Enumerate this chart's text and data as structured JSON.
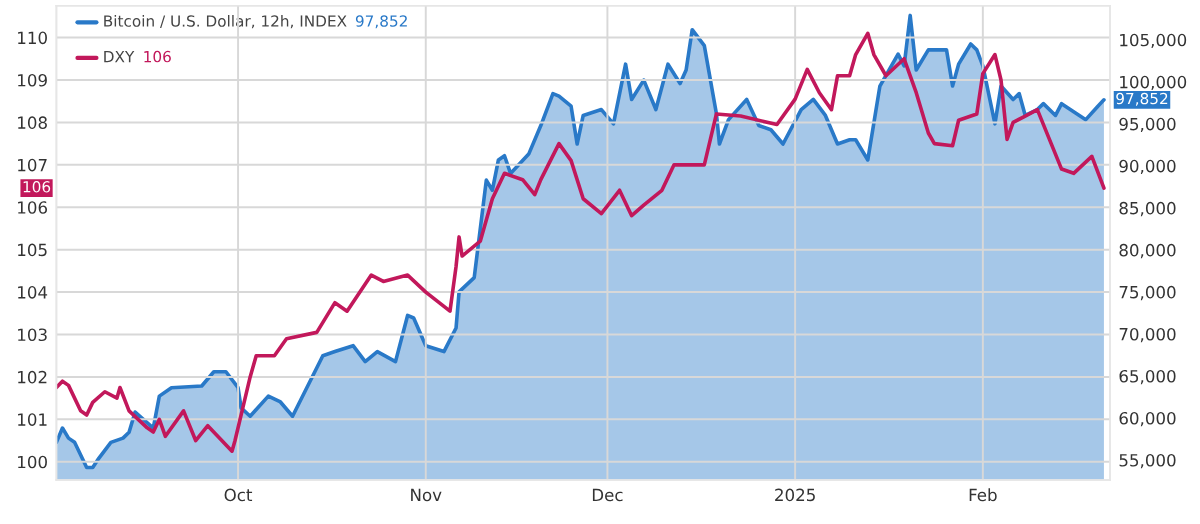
{
  "chart_data": {
    "type": "line",
    "xlim": [
      "2024-09-01",
      "2025-02-22"
    ],
    "xticks": [
      {
        "value": "2024-10-01",
        "label": "Oct"
      },
      {
        "value": "2024-11-01",
        "label": "Nov"
      },
      {
        "value": "2024-12-01",
        "label": "Dec"
      },
      {
        "value": "2025-01-01",
        "label": "2025"
      },
      {
        "value": "2025-02-01",
        "label": "Feb"
      }
    ],
    "ylim": [
      99.57,
      110.75
    ],
    "yticks": [
      100,
      101,
      102,
      103,
      104,
      105,
      106,
      107,
      108,
      109,
      110
    ],
    "y2lim": [
      52620,
      109050
    ],
    "y2ticks": [
      {
        "value": 55000,
        "label": "55,000"
      },
      {
        "value": 60000,
        "label": "60,000"
      },
      {
        "value": 65000,
        "label": "65,000"
      },
      {
        "value": 70000,
        "label": "70,000"
      },
      {
        "value": 75000,
        "label": "75,000"
      },
      {
        "value": 80000,
        "label": "80,000"
      },
      {
        "value": 85000,
        "label": "85,000"
      },
      {
        "value": 90000,
        "label": "90,000"
      },
      {
        "value": 95000,
        "label": "95,000"
      },
      {
        "value": 100000,
        "label": "100,000"
      },
      {
        "value": 105000,
        "label": "105,000"
      }
    ],
    "grid": true,
    "legend": "top left",
    "annotations": [
      "106",
      "97,852"
    ],
    "series": [
      {
        "name": "DXY",
        "axis": "y",
        "color": "#c2185b",
        "x": [
          "2024-09-01",
          "2024-09-02",
          "2024-09-03",
          "2024-09-05",
          "2024-09-06",
          "2024-09-07",
          "2024-09-09",
          "2024-09-11",
          "2024-09-11T12:00",
          "2024-09-13",
          "2024-09-16",
          "2024-09-17",
          "2024-09-18",
          "2024-09-19",
          "2024-09-22",
          "2024-09-24",
          "2024-09-26",
          "2024-09-30",
          "2024-09-30T12:00",
          "2024-10-02",
          "2024-10-03",
          "2024-10-04",
          "2024-10-07",
          "2024-10-09",
          "2024-10-14",
          "2024-10-17",
          "2024-10-19",
          "2024-10-23",
          "2024-10-25",
          "2024-10-29",
          "2024-11-01",
          "2024-11-05",
          "2024-11-06",
          "2024-11-06T12:00",
          "2024-11-07",
          "2024-11-10",
          "2024-11-12",
          "2024-11-14",
          "2024-11-17",
          "2024-11-19",
          "2024-11-20",
          "2024-11-23",
          "2024-11-25",
          "2024-11-27",
          "2024-11-30",
          "2024-12-03",
          "2024-12-05",
          "2024-12-07",
          "2024-12-10",
          "2024-12-12",
          "2024-12-17",
          "2024-12-19",
          "2024-12-23",
          "2024-12-29",
          "2025-01-01",
          "2025-01-03",
          "2025-01-05",
          "2025-01-07",
          "2025-01-08",
          "2025-01-10",
          "2025-01-11",
          "2025-01-13",
          "2025-01-14",
          "2025-01-16",
          "2025-01-19",
          "2025-01-21",
          "2025-01-23",
          "2025-01-24",
          "2025-01-27",
          "2025-01-28",
          "2025-01-31",
          "2025-02-01",
          "2025-02-03",
          "2025-02-04",
          "2025-02-05",
          "2025-02-06",
          "2025-02-08",
          "2025-02-10",
          "2025-02-12",
          "2025-02-14",
          "2025-02-16",
          "2025-02-19",
          "2025-02-21"
        ],
        "values": [
          101.75,
          101.9,
          101.8,
          101.2,
          101.1,
          101.4,
          101.65,
          101.5,
          101.75,
          101.2,
          100.8,
          100.7,
          101.0,
          100.6,
          101.2,
          100.5,
          100.85,
          100.25,
          100.5,
          101.4,
          102.0,
          102.5,
          102.5,
          102.9,
          103.05,
          103.75,
          103.55,
          104.4,
          104.25,
          104.4,
          104.0,
          103.55,
          104.6,
          105.3,
          104.85,
          105.2,
          106.2,
          106.8,
          106.65,
          106.3,
          106.65,
          107.5,
          107.1,
          106.2,
          105.85,
          106.4,
          105.8,
          106.05,
          106.4,
          107.0,
          107.0,
          108.2,
          108.15,
          107.95,
          108.55,
          109.25,
          108.7,
          108.3,
          109.1,
          109.1,
          109.6,
          110.1,
          109.6,
          109.1,
          109.5,
          108.7,
          107.75,
          107.5,
          107.45,
          108.05,
          108.2,
          109.15,
          109.6,
          109.0,
          107.6,
          108.0,
          108.15,
          108.3,
          107.6,
          106.9,
          106.8,
          107.2,
          106.45
        ]
      },
      {
        "name": "Bitcoin / U.S. Dollar, 12h, INDEX",
        "type": "area",
        "axis": "y2",
        "color": "#2979c8",
        "x": [
          "2024-09-01",
          "2024-09-02",
          "2024-09-03",
          "2024-09-04",
          "2024-09-06",
          "2024-09-07",
          "2024-09-08",
          "2024-09-10",
          "2024-09-12",
          "2024-09-13",
          "2024-09-14",
          "2024-09-17",
          "2024-09-18",
          "2024-09-20",
          "2024-09-25",
          "2024-09-27",
          "2024-09-29",
          "2024-10-01",
          "2024-10-01T12:00",
          "2024-10-03",
          "2024-10-06",
          "2024-10-08",
          "2024-10-10",
          "2024-10-15",
          "2024-10-17",
          "2024-10-20",
          "2024-10-22",
          "2024-10-24",
          "2024-10-27",
          "2024-10-29",
          "2024-10-30",
          "2024-11-01",
          "2024-11-04",
          "2024-11-06",
          "2024-11-06T12:00",
          "2024-11-09",
          "2024-11-11",
          "2024-11-12",
          "2024-11-13",
          "2024-11-14",
          "2024-11-15",
          "2024-11-18",
          "2024-11-20",
          "2024-11-22",
          "2024-11-23",
          "2024-11-25",
          "2024-11-26",
          "2024-11-27",
          "2024-11-30",
          "2024-12-02",
          "2024-12-04",
          "2024-12-05",
          "2024-12-07",
          "2024-12-09",
          "2024-12-11",
          "2024-12-13",
          "2024-12-14",
          "2024-12-15",
          "2024-12-17",
          "2024-12-19",
          "2024-12-19T12:00",
          "2024-12-21",
          "2024-12-24",
          "2024-12-26",
          "2024-12-28",
          "2024-12-30",
          "2025-01-02",
          "2025-01-04",
          "2025-01-06",
          "2025-01-08",
          "2025-01-10",
          "2025-01-11",
          "2025-01-13",
          "2025-01-15",
          "2025-01-18",
          "2025-01-19",
          "2025-01-20",
          "2025-01-21",
          "2025-01-23",
          "2025-01-24",
          "2025-01-26",
          "2025-01-27",
          "2025-01-28",
          "2025-01-30",
          "2025-01-31",
          "2025-02-01",
          "2025-02-03",
          "2025-02-04",
          "2025-02-06",
          "2025-02-07",
          "2025-02-08",
          "2025-02-10",
          "2025-02-11",
          "2025-02-13",
          "2025-02-14",
          "2025-02-18",
          "2025-02-20",
          "2025-02-21"
        ],
        "values": [
          57100,
          58800,
          57600,
          57100,
          54100,
          54100,
          55200,
          57100,
          57600,
          58300,
          60700,
          58800,
          62600,
          63600,
          63800,
          65500,
          65500,
          63600,
          61200,
          60200,
          62600,
          61900,
          60200,
          67400,
          67900,
          68600,
          66700,
          67900,
          66700,
          72200,
          71900,
          68600,
          67900,
          70700,
          75000,
          76700,
          88300,
          87100,
          90700,
          91200,
          89100,
          91400,
          94800,
          98600,
          98300,
          97100,
          92600,
          96000,
          96700,
          95000,
          102100,
          97900,
          100200,
          96700,
          102100,
          99800,
          101400,
          106200,
          104300,
          96200,
          92600,
          95500,
          97900,
          94800,
          94300,
          92600,
          96700,
          97900,
          96000,
          92600,
          93100,
          93100,
          90700,
          99500,
          103300,
          101900,
          107900,
          101400,
          103800,
          103800,
          103800,
          99500,
          102100,
          104500,
          103800,
          101900,
          95000,
          99500,
          97900,
          98600,
          96000,
          96700,
          97400,
          96000,
          97400,
          95500,
          97100,
          97852
        ]
      }
    ]
  }
}
